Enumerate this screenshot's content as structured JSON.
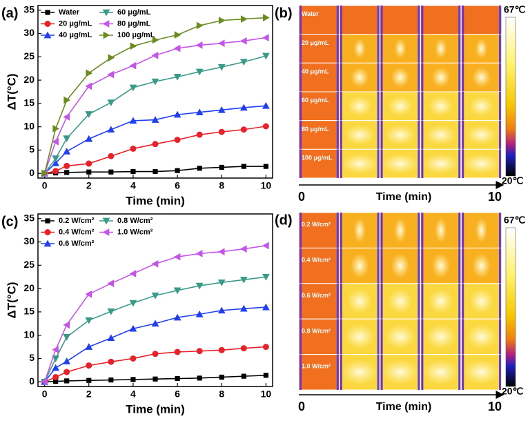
{
  "chart_data": [
    {
      "type": "line",
      "panel_label": "(a)",
      "x_label": "Time (min)",
      "y_label": "ΔT(°C)",
      "x": [
        0,
        0.5,
        1,
        2,
        3,
        4,
        5,
        6,
        7,
        8,
        9,
        10
      ],
      "xlim": [
        -0.3,
        10.3
      ],
      "xticks": [
        0,
        2,
        4,
        6,
        8,
        10
      ],
      "ylim": [
        -1,
        36
      ],
      "yticks": [
        0,
        5,
        10,
        15,
        20,
        25,
        30,
        35
      ],
      "legend": "upper left",
      "legend_columns": 2,
      "series": [
        {
          "name": "Water",
          "color": "#000000",
          "marker": "square",
          "values": [
            0,
            0.1,
            0.2,
            0.3,
            0.3,
            0.4,
            0.4,
            0.6,
            1.1,
            1.3,
            1.5,
            1.5
          ]
        },
        {
          "name": "20 μg/mL",
          "color": "#e8212a",
          "marker": "circle",
          "values": [
            0,
            0.5,
            1.6,
            2.1,
            3.7,
            5.3,
            6.3,
            7.2,
            8.3,
            8.9,
            9.4,
            10.1
          ]
        },
        {
          "name": "40 μg/mL",
          "color": "#1f3ff0",
          "marker": "triangle-up",
          "values": [
            0,
            2.2,
            4.7,
            7.4,
            9.4,
            11.3,
            11.5,
            12.6,
            13.1,
            13.6,
            14.1,
            14.5
          ]
        },
        {
          "name": "60 μg/mL",
          "color": "#3a9a88",
          "marker": "triangle-down",
          "values": [
            0,
            3.2,
            7.5,
            12.7,
            15.2,
            18.4,
            19.7,
            20.7,
            21.8,
            22.8,
            23.9,
            25.2
          ]
        },
        {
          "name": "80 μg/mL",
          "color": "#c455e8",
          "marker": "triangle-left",
          "values": [
            0,
            6.8,
            12.1,
            18.7,
            21.2,
            23.1,
            25.3,
            26.8,
            27.5,
            27.9,
            28.4,
            29.1
          ]
        },
        {
          "name": "100 μg/mL",
          "color": "#6b8a1f",
          "marker": "triangle-right",
          "values": [
            0,
            9.6,
            15.7,
            21.5,
            24.8,
            27.3,
            28.6,
            29.7,
            31.7,
            32.8,
            33.1,
            33.4
          ]
        }
      ]
    },
    {
      "type": "line",
      "panel_label": "(c)",
      "x_label": "Time (min)",
      "y_label": "ΔT(°C)",
      "x": [
        0,
        0.5,
        1,
        2,
        3,
        4,
        5,
        6,
        7,
        8,
        9,
        10
      ],
      "xlim": [
        -0.3,
        10.3
      ],
      "xticks": [
        0,
        2,
        4,
        6,
        8,
        10
      ],
      "ylim": [
        -1,
        36
      ],
      "yticks": [
        0,
        5,
        10,
        15,
        20,
        25,
        30,
        35
      ],
      "legend": "upper left",
      "legend_columns": 2,
      "series": [
        {
          "name": "0.2 W/cm²",
          "color": "#000000",
          "marker": "square",
          "values": [
            0,
            0.1,
            0.2,
            0.3,
            0.4,
            0.5,
            0.6,
            0.7,
            0.8,
            1.0,
            1.2,
            1.4
          ]
        },
        {
          "name": "0.4 W/cm²",
          "color": "#e8212a",
          "marker": "circle",
          "values": [
            0,
            1.0,
            2.1,
            3.5,
            4.3,
            5.0,
            6.0,
            6.4,
            6.6,
            6.8,
            7.2,
            7.5
          ]
        },
        {
          "name": "0.6 W/cm²",
          "color": "#1f3ff0",
          "marker": "triangle-up",
          "values": [
            0,
            3.0,
            4.4,
            7.5,
            9.4,
            11.4,
            12.5,
            13.8,
            14.5,
            15.3,
            15.7,
            16.0
          ]
        },
        {
          "name": "0.8 W/cm²",
          "color": "#3a9a88",
          "marker": "triangle-down",
          "values": [
            0,
            5.0,
            9.6,
            13.2,
            15.1,
            16.9,
            18.5,
            19.6,
            20.6,
            21.3,
            21.9,
            22.5
          ]
        },
        {
          "name": "1.0 W/cm²",
          "color": "#c455e8",
          "marker": "triangle-left",
          "values": [
            0,
            6.9,
            12.2,
            18.8,
            21.1,
            23.2,
            25.3,
            26.8,
            27.5,
            27.9,
            28.5,
            29.2
          ]
        }
      ]
    }
  ],
  "thermal_panels": [
    {
      "panel_label": "(b)",
      "rows": [
        "Water",
        "20 μg/mL",
        "40 μg/mL",
        "60 μg/mL",
        "80 μg/mL",
        "100 μg/mL"
      ],
      "scale_max": "67℃",
      "scale_min": "20℃",
      "axis_start": "0",
      "axis_label": "Time (min)",
      "axis_end": "10"
    },
    {
      "panel_label": "(d)",
      "rows": [
        "0.2 W/cm²",
        "0.4 W/cm²",
        "0.6 W/cm²",
        "0.8 W/cm²",
        "1.0 W/cm²"
      ],
      "scale_max": "67℃",
      "scale_min": "20℃",
      "axis_start": "0",
      "axis_label": "Time (min)",
      "axis_end": "10"
    }
  ]
}
